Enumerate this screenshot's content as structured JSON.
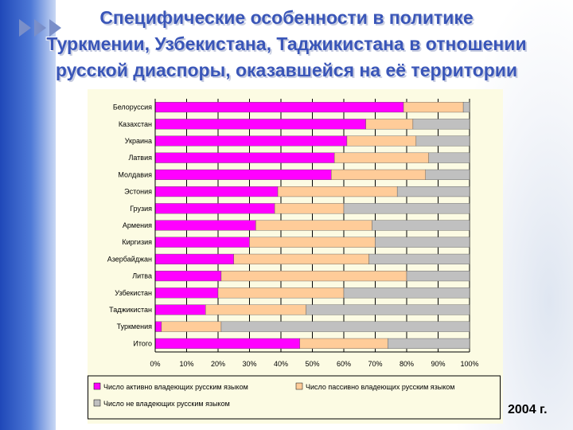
{
  "slide": {
    "title_lines": [
      "Специфические особенности в политике",
      "Туркмении, Узбекистана, Таджикистана в отношении",
      "русской диаспоры, оказавшейся на её территории"
    ],
    "year_label": "2004 г."
  },
  "colors": {
    "active": "#ff00ff",
    "passive": "#ffcc99",
    "none": "#c0c0c0"
  },
  "chart_data": {
    "type": "bar",
    "orientation": "horizontal",
    "stacked": "percent",
    "categories": [
      "Белоруссия",
      "Казахстан",
      "Украина",
      "Латвия",
      "Молдавия",
      "Эстония",
      "Грузия",
      "Армения",
      "Киргизия",
      "Азербайджан",
      "Литва",
      "Узбекистан",
      "Таджикистан",
      "Туркмения",
      "Итого"
    ],
    "series": [
      {
        "name": "Число активно владеющих русским языком",
        "values": [
          79,
          67,
          61,
          57,
          56,
          39,
          38,
          32,
          30,
          25,
          21,
          20,
          16,
          2,
          46
        ]
      },
      {
        "name": "Число пассивно владеющих русским языком",
        "values": [
          19,
          15,
          22,
          30,
          30,
          38,
          22,
          37,
          40,
          43,
          59,
          40,
          32,
          19,
          28
        ]
      },
      {
        "name": "Число не владеющих русским языком",
        "values": [
          2,
          18,
          17,
          13,
          14,
          23,
          40,
          31,
          30,
          32,
          20,
          40,
          52,
          79,
          26
        ]
      }
    ],
    "xlim": [
      0,
      100
    ],
    "x_ticks": [
      "0%",
      "10%",
      "20%",
      "30%",
      "40%",
      "50%",
      "60%",
      "70%",
      "80%",
      "90%",
      "100%"
    ],
    "grid": true,
    "legend_position": "bottom"
  }
}
